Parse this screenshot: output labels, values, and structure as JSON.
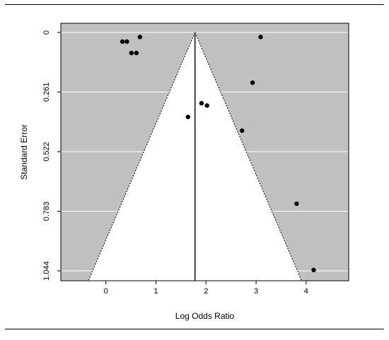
{
  "chart_data": {
    "type": "scatter",
    "subtype": "funnel-plot",
    "title": "",
    "xlabel": "Log Odds Ratio",
    "ylabel": "Standard Error",
    "xlim": [
      -0.9,
      4.85
    ],
    "ylim": [
      1.044,
      0
    ],
    "y_reversed": true,
    "x_ticks": [
      "0",
      "1",
      "2",
      "3",
      "4"
    ],
    "y_ticks": [
      "0",
      "0.261",
      "0.522",
      "0.783",
      "1.044"
    ],
    "pooled_estimate": 1.78,
    "grid": true,
    "background_color": "#c0c0c0",
    "funnel_color": "#ffffff",
    "points": [
      {
        "x": 0.33,
        "y": 0.04
      },
      {
        "x": 0.42,
        "y": 0.04
      },
      {
        "x": 0.68,
        "y": 0.02
      },
      {
        "x": 0.51,
        "y": 0.09
      },
      {
        "x": 0.61,
        "y": 0.09
      },
      {
        "x": 3.09,
        "y": 0.02
      },
      {
        "x": 2.93,
        "y": 0.22
      },
      {
        "x": 1.91,
        "y": 0.31
      },
      {
        "x": 2.02,
        "y": 0.32
      },
      {
        "x": 1.64,
        "y": 0.37
      },
      {
        "x": 2.72,
        "y": 0.43
      },
      {
        "x": 3.81,
        "y": 0.75
      },
      {
        "x": 4.15,
        "y": 1.04
      }
    ]
  }
}
